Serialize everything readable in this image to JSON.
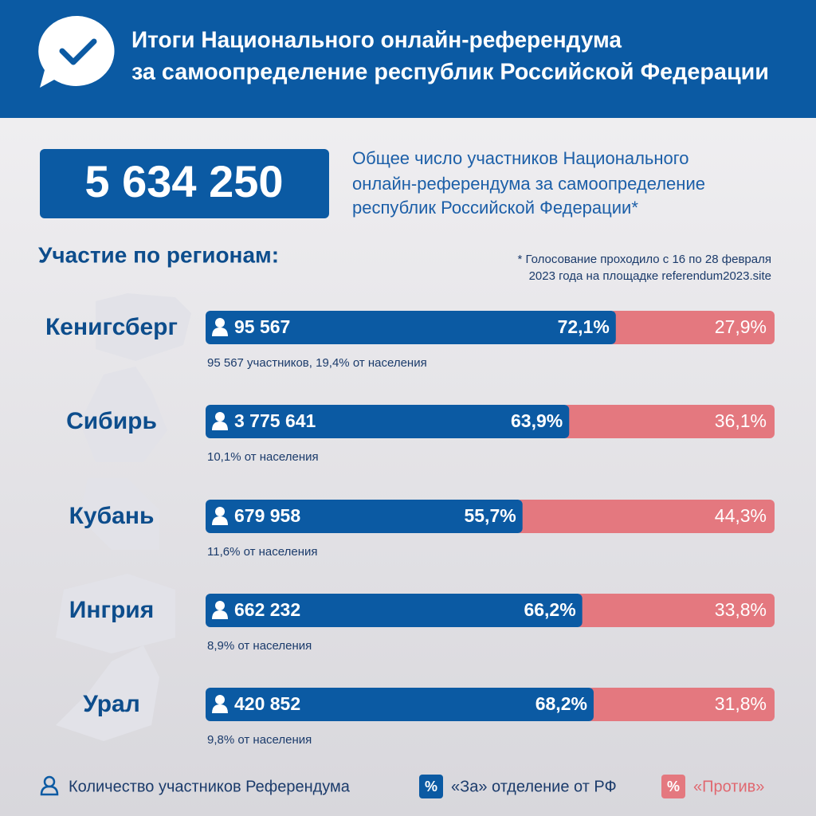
{
  "header": {
    "title": [
      "Итоги Национального онлайн-референдума",
      "за самоопределение республик Российской Федерации"
    ]
  },
  "total": {
    "value": "5 634 250",
    "caption": [
      "Общее число участников Национального",
      "онлайн-референдума за самоопределение",
      "республик Российской Федерации*"
    ]
  },
  "section_title": "Участие по регионам:",
  "note": [
    "* Голосование проходило с 16 по 28 февраля",
    "2023 года на площадке referendum2023.site"
  ],
  "regions": [
    {
      "name": "Кенигсберг",
      "participants": "95 567",
      "for": 72.1,
      "for_label": "72,1%",
      "against": 27.9,
      "against_label": "27,9%",
      "note": "95 567 участников, 19,4% от населения"
    },
    {
      "name": "Сибирь",
      "participants": "3 775 641",
      "for": 63.9,
      "for_label": "63,9%",
      "against": 36.1,
      "against_label": "36,1%",
      "note": "10,1% от населения"
    },
    {
      "name": "Кубань",
      "participants": "679 958",
      "for": 55.7,
      "for_label": "55,7%",
      "against": 44.3,
      "against_label": "44,3%",
      "note": "11,6% от населения"
    },
    {
      "name": "Ингрия",
      "participants": "662 232",
      "for": 66.2,
      "for_label": "66,2%",
      "against": 33.8,
      "against_label": "33,8%",
      "note": "8,9% от населения"
    },
    {
      "name": "Урал",
      "participants": "420 852",
      "for": 68.2,
      "for_label": "68,2%",
      "against": 31.8,
      "against_label": "31,8%",
      "note": "9,8% от населения"
    }
  ],
  "legend": {
    "participants": "Количество участников Референдума",
    "for": {
      "icon": "%",
      "label": "«За» отделение от РФ"
    },
    "against": {
      "icon": "%",
      "label": "«Против»"
    }
  }
}
